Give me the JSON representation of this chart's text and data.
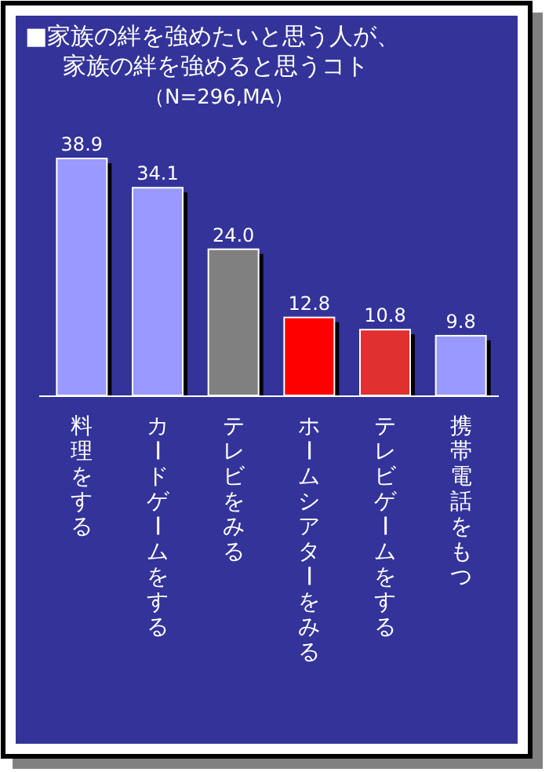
{
  "chart_data": {
    "type": "bar",
    "title": "■家族の絆を強めたいと思う人が、家族の絆を強めると思うコト",
    "subtitle": "（N=296,MA）",
    "categories": [
      "料理をする",
      "カードゲームをする",
      "テレビをみる",
      "ホームシアターをみる",
      "テレビゲームをする",
      "携帯電話をもつ"
    ],
    "values": [
      38.9,
      34.1,
      24.0,
      12.8,
      10.8,
      9.8
    ],
    "value_labels": [
      "38.9",
      "34.1",
      "24.0",
      "12.8",
      "10.8",
      "9.8"
    ],
    "colors": [
      "#9999ff",
      "#9999ff",
      "#808080",
      "#ff0000",
      "#e03030",
      "#9999ff"
    ]
  }
}
